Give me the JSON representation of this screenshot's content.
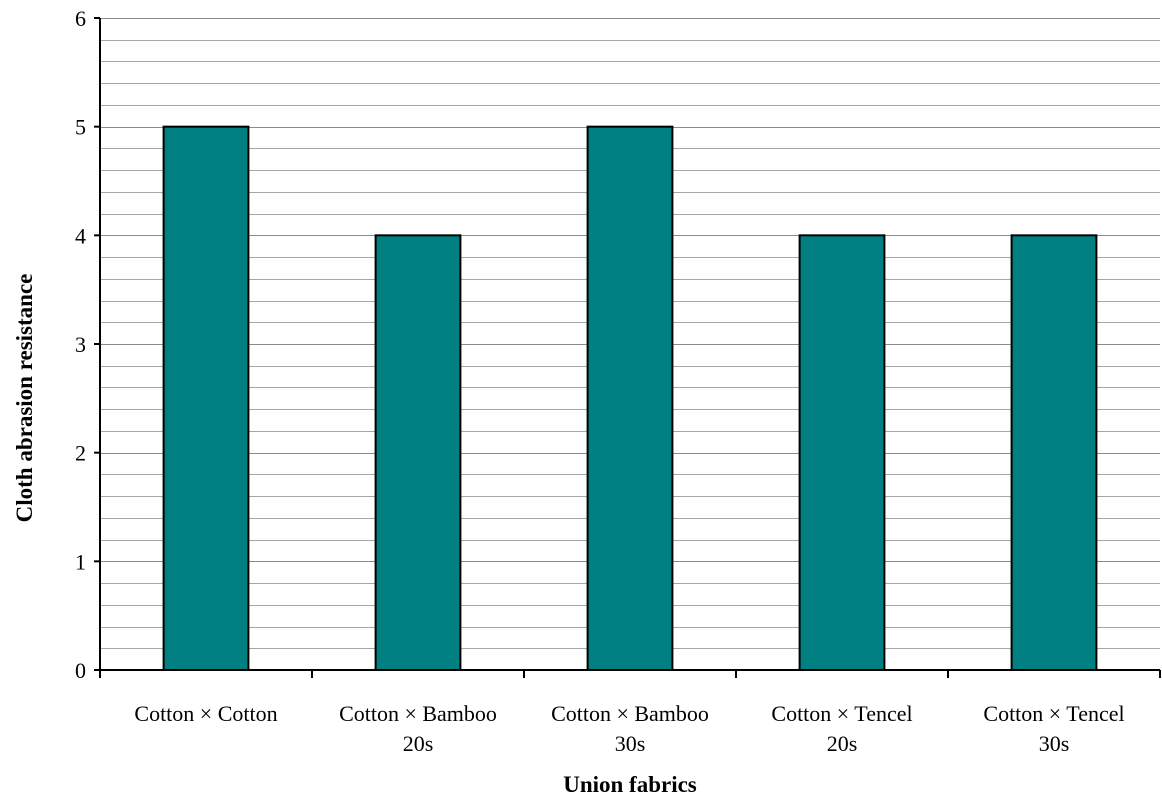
{
  "chart_data": {
    "type": "bar",
    "title": "",
    "xlabel": "Union fabrics",
    "ylabel": "Cloth abrasion resistance",
    "categories": [
      [
        "Cotton × Cotton"
      ],
      [
        "Cotton × Bamboo",
        "20s"
      ],
      [
        "Cotton × Bamboo",
        "30s"
      ],
      [
        "Cotton × Tencel",
        "20s"
      ],
      [
        "Cotton × Tencel",
        "30s"
      ]
    ],
    "values": [
      5,
      4,
      5,
      4,
      4
    ],
    "ylim": [
      0,
      6
    ],
    "yticks": [
      "0",
      "1",
      "2",
      "3",
      "4",
      "5",
      "6"
    ],
    "minor_grid_step": 0.2,
    "grid": true,
    "legend": "none",
    "colors": {
      "bar": "#008080",
      "bar_outline": "#000000",
      "grid": "#a6a6a6",
      "axis": "#000000"
    }
  }
}
